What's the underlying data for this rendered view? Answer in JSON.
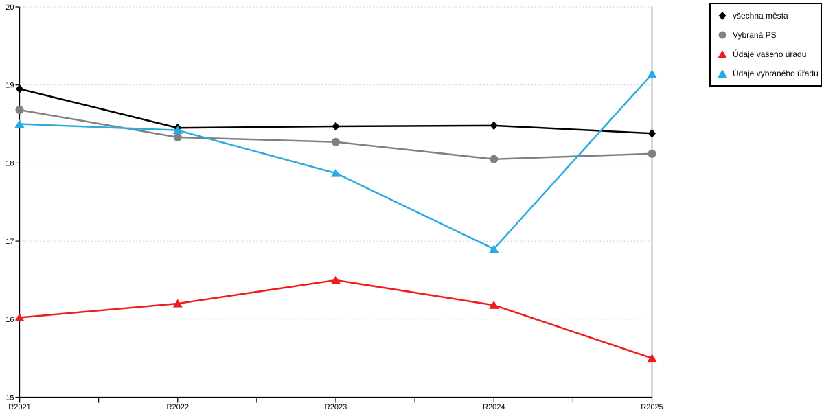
{
  "chart_data": {
    "type": "line",
    "title": "",
    "xlabel": "",
    "ylabel": "",
    "categories": [
      "R2021",
      "R2022",
      "R2023",
      "R2024",
      "R2025"
    ],
    "series": [
      {
        "name": "všechna města",
        "marker": "diamond",
        "color": "#000000",
        "values": [
          18.95,
          18.45,
          18.47,
          18.48,
          18.38
        ]
      },
      {
        "name": "Vybraná PS",
        "marker": "circle",
        "color": "#808080",
        "values": [
          18.68,
          18.33,
          18.27,
          18.05,
          18.12
        ]
      },
      {
        "name": "Údaje vašeho úřadu",
        "marker": "triangle",
        "color": "#EE1C1C",
        "values": [
          16.02,
          16.2,
          16.5,
          16.18,
          15.5
        ]
      },
      {
        "name": "Údaje vybraného úřadu",
        "marker": "triangle",
        "color": "#29ABE2",
        "values": [
          18.5,
          18.42,
          17.87,
          16.9,
          19.14
        ]
      }
    ],
    "ylim": [
      15,
      20
    ],
    "yticks": [
      15,
      16,
      17,
      18,
      19,
      20
    ],
    "x_minor_ticks": true,
    "grid": "horizontal-dotted",
    "legend_position": "top-right"
  },
  "colors": {
    "background": "#FFFFFF",
    "axis": "#000000",
    "gridline": "#C8C8C8",
    "legend_border": "#000000"
  }
}
